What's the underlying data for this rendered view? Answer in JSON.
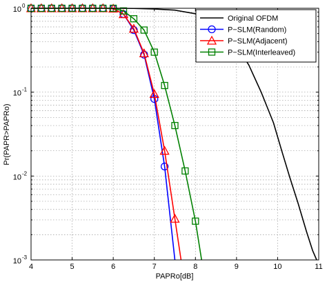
{
  "chart_data": {
    "type": "line",
    "xlabel": "PAPRo[dB]",
    "ylabel": "Pr(PAPR>PAPRo)",
    "xlim": [
      4,
      11
    ],
    "ylim": [
      0.001,
      1
    ],
    "yscale": "log",
    "grid": true,
    "legend_position": "top-right",
    "x_ticks": [
      "4",
      "5",
      "6",
      "7",
      "8",
      "9",
      "10",
      "11"
    ],
    "y_ticks": [
      {
        "value": 1,
        "base": "10",
        "exp": "0"
      },
      {
        "value": 0.1,
        "base": "10",
        "exp": "-1"
      },
      {
        "value": 0.01,
        "base": "10",
        "exp": "-2"
      },
      {
        "value": 0.001,
        "base": "10",
        "exp": "-3"
      }
    ],
    "series": [
      {
        "name": "Original OFDM",
        "color": "#000000",
        "marker": "none",
        "points": [
          [
            4,
            1
          ],
          [
            5,
            1
          ],
          [
            6,
            1
          ],
          [
            6.5,
            0.995
          ],
          [
            7,
            0.98
          ],
          [
            7.5,
            0.95
          ],
          [
            8,
            0.86
          ],
          [
            8.5,
            0.66
          ],
          [
            8.8,
            0.48
          ],
          [
            9,
            0.36
          ],
          [
            9.3,
            0.21
          ],
          [
            9.6,
            0.1
          ],
          [
            9.9,
            0.043
          ],
          [
            10.1,
            0.02
          ],
          [
            10.3,
            0.0095
          ],
          [
            10.5,
            0.0047
          ],
          [
            10.7,
            0.0022
          ],
          [
            10.85,
            0.0013
          ],
          [
            10.95,
            0.001
          ]
        ]
      },
      {
        "name": "P−SLM(Random)",
        "color": "#0000ff",
        "marker": "circle",
        "points": [
          [
            4,
            1
          ],
          [
            4.25,
            1
          ],
          [
            4.5,
            1
          ],
          [
            4.75,
            1
          ],
          [
            5,
            1
          ],
          [
            5.25,
            1
          ],
          [
            5.5,
            1
          ],
          [
            5.75,
            1
          ],
          [
            6,
            0.99
          ],
          [
            6.25,
            0.85
          ],
          [
            6.5,
            0.55
          ],
          [
            6.75,
            0.28
          ],
          [
            7,
            0.083
          ],
          [
            7.25,
            0.013
          ],
          [
            7.5,
            0.001
          ]
        ],
        "marker_x": [
          4,
          4.25,
          4.5,
          4.75,
          5,
          5.25,
          5.5,
          5.75,
          6,
          6.25,
          6.5,
          6.75,
          7,
          7.25
        ]
      },
      {
        "name": "P−SLM(Adjacent)",
        "color": "#ff0000",
        "marker": "triangle",
        "points": [
          [
            4,
            1
          ],
          [
            4.25,
            1
          ],
          [
            4.5,
            1
          ],
          [
            4.75,
            1
          ],
          [
            5,
            1
          ],
          [
            5.25,
            1
          ],
          [
            5.5,
            1
          ],
          [
            5.75,
            1
          ],
          [
            6,
            0.99
          ],
          [
            6.25,
            0.85
          ],
          [
            6.5,
            0.57
          ],
          [
            6.75,
            0.29
          ],
          [
            7,
            0.095
          ],
          [
            7.25,
            0.02
          ],
          [
            7.5,
            0.0031
          ],
          [
            7.65,
            0.001
          ]
        ],
        "marker_x": [
          4,
          4.25,
          4.5,
          4.75,
          5,
          5.25,
          5.5,
          5.75,
          6,
          6.25,
          6.5,
          6.75,
          7,
          7.25,
          7.5
        ]
      },
      {
        "name": "P−SLM(Interleaved)",
        "color": "#008000",
        "marker": "square",
        "points": [
          [
            4,
            1
          ],
          [
            4.25,
            1
          ],
          [
            4.5,
            1
          ],
          [
            4.75,
            1
          ],
          [
            5,
            1
          ],
          [
            5.25,
            1
          ],
          [
            5.5,
            1
          ],
          [
            5.75,
            1
          ],
          [
            6,
            1
          ],
          [
            6.25,
            0.93
          ],
          [
            6.5,
            0.75
          ],
          [
            6.75,
            0.55
          ],
          [
            7,
            0.3
          ],
          [
            7.25,
            0.12
          ],
          [
            7.5,
            0.04
          ],
          [
            7.75,
            0.0115
          ],
          [
            8,
            0.0029
          ],
          [
            8.15,
            0.001
          ]
        ],
        "marker_x": [
          4,
          4.25,
          4.5,
          4.75,
          5,
          5.25,
          5.5,
          5.75,
          6,
          6.25,
          6.5,
          6.75,
          7,
          7.25,
          7.5,
          7.75,
          8
        ]
      }
    ]
  }
}
